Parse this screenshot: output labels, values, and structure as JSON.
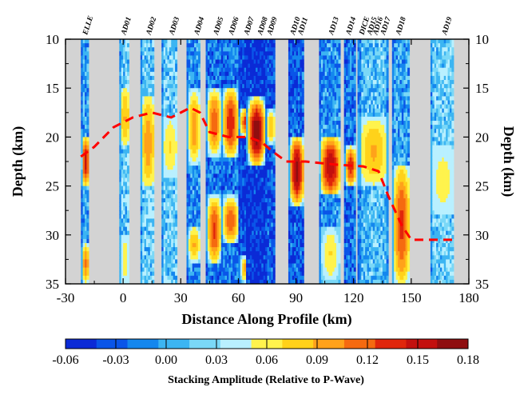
{
  "chart_data": {
    "type": "heatmap",
    "title": "",
    "xlabel": "Distance Along Profile (km)",
    "ylabel": "Depth (km)",
    "ylabel_right": "Depth (km)",
    "xlim": [
      -30,
      180
    ],
    "ylim": [
      35,
      10
    ],
    "x_ticks": [
      -30,
      0,
      30,
      60,
      90,
      120,
      150,
      180
    ],
    "y_ticks": [
      10,
      15,
      20,
      25,
      30,
      35
    ],
    "background_color": "#d3d3d3",
    "stations": [
      {
        "name": "ELLE",
        "x": -20
      },
      {
        "name": "AD01",
        "x": 0
      },
      {
        "name": "AD02",
        "x": 13
      },
      {
        "name": "AD03",
        "x": 25
      },
      {
        "name": "AD04",
        "x": 38
      },
      {
        "name": "AD05",
        "x": 48
      },
      {
        "name": "AD06",
        "x": 56
      },
      {
        "name": "AD07",
        "x": 64
      },
      {
        "name": "AD08",
        "x": 71
      },
      {
        "name": "AD09",
        "x": 76
      },
      {
        "name": "AD10",
        "x": 88
      },
      {
        "name": "AD11",
        "x": 92
      },
      {
        "name": "AD13",
        "x": 108
      },
      {
        "name": "AD14",
        "x": 117
      },
      {
        "name": "DICE",
        "x": 124
      },
      {
        "name": "AD15",
        "x": 128
      },
      {
        "name": "AD16",
        "x": 131
      },
      {
        "name": "AD17",
        "x": 135
      },
      {
        "name": "AD18",
        "x": 143
      },
      {
        "name": "AD19",
        "x": 167
      }
    ],
    "stripes": [
      {
        "x0": -22,
        "x1": -18,
        "base": 0.0,
        "hot": [
          [
            20,
            25,
            0.15
          ],
          [
            31,
            35,
            0.11
          ]
        ]
      },
      {
        "x0": -2,
        "x1": 3,
        "base": 0.02,
        "hot": [
          [
            15,
            21,
            0.09
          ],
          [
            30,
            35,
            0.06
          ]
        ]
      },
      {
        "x0": 9,
        "x1": 16,
        "base": 0.02,
        "hot": [
          [
            16,
            25,
            0.1
          ]
        ]
      },
      {
        "x0": 20,
        "x1": 28,
        "base": 0.02,
        "hot": [
          [
            18,
            24,
            0.07
          ]
        ]
      },
      {
        "x0": 33,
        "x1": 40,
        "base": -0.01,
        "hot": [
          [
            15,
            23,
            0.1
          ],
          [
            29,
            33,
            0.09
          ]
        ]
      },
      {
        "x0": 43,
        "x1": 51,
        "base": -0.02,
        "hot": [
          [
            15,
            22,
            0.12
          ],
          [
            26,
            33,
            0.13
          ]
        ]
      },
      {
        "x0": 51,
        "x1": 60,
        "base": -0.02,
        "hot": [
          [
            15,
            22,
            0.14
          ],
          [
            26,
            31,
            0.12
          ]
        ]
      },
      {
        "x0": 60,
        "x1": 68,
        "base": -0.04,
        "hot": [
          [
            17,
            20,
            0.14
          ],
          [
            32,
            35,
            0.1
          ]
        ]
      },
      {
        "x0": 64,
        "x1": 74,
        "base": -0.05,
        "hot": [
          [
            16,
            23,
            0.18
          ]
        ]
      },
      {
        "x0": 74,
        "x1": 79,
        "base": -0.03,
        "hot": [
          [
            17,
            21,
            0.09
          ]
        ]
      },
      {
        "x0": 86,
        "x1": 94,
        "base": -0.03,
        "hot": [
          [
            20,
            27,
            0.17
          ]
        ]
      },
      {
        "x0": 102,
        "x1": 113,
        "base": -0.01,
        "hot": [
          [
            20,
            26,
            0.16
          ],
          [
            29,
            35,
            0.07
          ]
        ]
      },
      {
        "x0": 115,
        "x1": 121,
        "base": -0.02,
        "hot": [
          [
            21,
            25,
            0.14
          ]
        ]
      },
      {
        "x0": 122,
        "x1": 138,
        "base": 0.01,
        "hot": [
          [
            18,
            25,
            0.09
          ]
        ]
      },
      {
        "x0": 140,
        "x1": 149,
        "base": 0.0,
        "hot": [
          [
            23,
            35,
            0.13
          ]
        ]
      },
      {
        "x0": 160,
        "x1": 172,
        "base": 0.02,
        "hot": [
          [
            21,
            28,
            0.06
          ]
        ]
      }
    ],
    "interface": {
      "name": "",
      "color": "#ff0000",
      "style": "dashed",
      "x": [
        -22,
        -15,
        -5,
        5,
        15,
        25,
        35,
        40,
        45,
        55,
        65,
        72,
        78,
        85,
        95,
        110,
        125,
        133,
        138,
        145,
        150,
        160,
        172
      ],
      "y": [
        22,
        21,
        19,
        18,
        17.5,
        18,
        17,
        17.5,
        19.5,
        20,
        20,
        20.5,
        21.5,
        22.5,
        22.5,
        22.8,
        23,
        23.5,
        26,
        29,
        30.5,
        30.5,
        30.5
      ]
    },
    "colorbar": {
      "title": "Stacking Amplitude (Relative to P-Wave)",
      "min": -0.06,
      "max": 0.18,
      "tick_values": [
        -0.06,
        -0.03,
        0.0,
        0.03,
        0.06,
        0.09,
        0.12,
        0.15,
        0.18
      ],
      "tick_labels": [
        "-0.06",
        "-0.03",
        "0.00",
        "0.03",
        "0.06",
        "0.09",
        "0.12",
        "0.15",
        "0.18"
      ],
      "colors": [
        "#0b2ad6",
        "#0a55e8",
        "#1487ee",
        "#3cb5f2",
        "#7ad8f7",
        "#b9f0ff",
        "#fff34d",
        "#ffd21a",
        "#ffa21a",
        "#f56a10",
        "#e0260b",
        "#c3100e",
        "#8f0e10"
      ]
    }
  }
}
